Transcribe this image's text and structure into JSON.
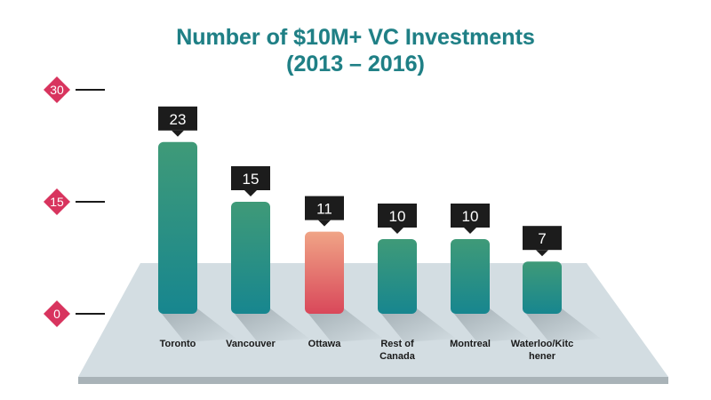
{
  "chart_data": {
    "type": "bar",
    "title": [
      "Number of $10M+ VC Investments",
      "(2013 – 2016)"
    ],
    "categories": [
      [
        "Toronto"
      ],
      [
        "Vancouver"
      ],
      [
        "Ottawa"
      ],
      [
        "Rest of",
        "Canada"
      ],
      [
        "Montreal"
      ],
      [
        "Waterloo/Kitc",
        "hener"
      ]
    ],
    "values": [
      23,
      15,
      11,
      10,
      10,
      7
    ],
    "highlight_index": 2,
    "yticks": [
      0,
      15,
      30
    ],
    "ylim": [
      0,
      30
    ],
    "grid": false,
    "colors": {
      "title": "#1f7f85",
      "bar_top": "#3f9a78",
      "bar_bottom": "#17868f",
      "highlight_top": "#f0a486",
      "highlight_bottom": "#d9485a",
      "label_box": "#1c1c1c",
      "tick_diamond": "#d8345e",
      "floor": "#d3dde2",
      "floor_edge": "#a9b3b8"
    }
  }
}
